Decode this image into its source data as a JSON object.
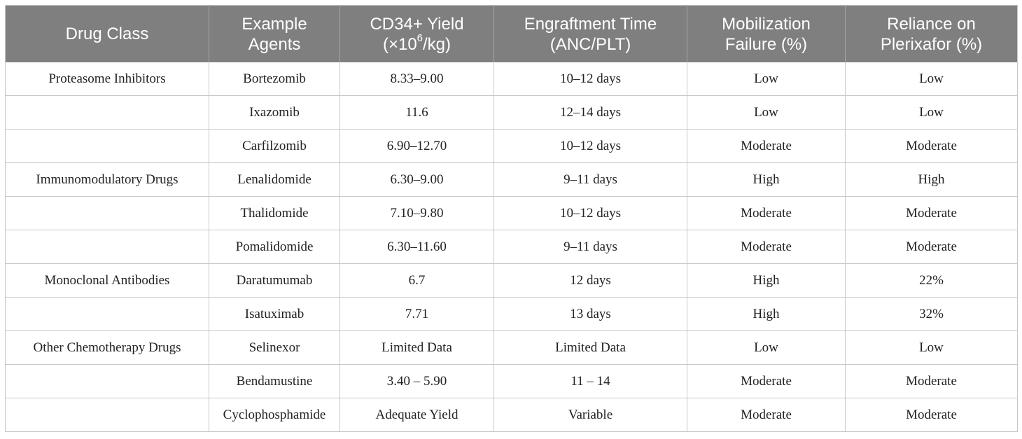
{
  "header": {
    "drug_class": "Drug Class",
    "example_agents_l1": "Example",
    "example_agents_l2": "Agents",
    "cd34_l1": "CD34+ Yield",
    "cd34_l2_pre": "(×10",
    "cd34_l2_sup": "6",
    "cd34_l2_post": "/kg)",
    "engraft_l1": "Engraftment Time",
    "engraft_l2": "(ANC/PLT)",
    "mobil_l1": "Mobilization",
    "mobil_l2": "Failure (%)",
    "reliance_l1": "Reliance on",
    "reliance_l2": "Plerixafor (%)"
  },
  "rows": [
    {
      "drug_class": "Proteasome Inhibitors",
      "agent": "Bortezomib",
      "yield": "8.33–9.00",
      "engraftment": "10–12 days",
      "failure": "Low",
      "reliance": "Low"
    },
    {
      "drug_class": "",
      "agent": "Ixazomib",
      "yield": "11.6",
      "engraftment": "12–14 days",
      "failure": "Low",
      "reliance": "Low"
    },
    {
      "drug_class": "",
      "agent": "Carfilzomib",
      "yield": "6.90–12.70",
      "engraftment": "10–12 days",
      "failure": "Moderate",
      "reliance": "Moderate"
    },
    {
      "drug_class": "Immunomodulatory Drugs",
      "agent": "Lenalidomide",
      "yield": "6.30–9.00",
      "engraftment": "9–11 days",
      "failure": "High",
      "reliance": "High"
    },
    {
      "drug_class": "",
      "agent": "Thalidomide",
      "yield": "7.10–9.80",
      "engraftment": "10–12 days",
      "failure": "Moderate",
      "reliance": "Moderate"
    },
    {
      "drug_class": "",
      "agent": "Pomalidomide",
      "yield": "6.30–11.60",
      "engraftment": "9–11 days",
      "failure": "Moderate",
      "reliance": "Moderate"
    },
    {
      "drug_class": "Monoclonal Antibodies",
      "agent": "Daratumumab",
      "yield": "6.7",
      "engraftment": "12 days",
      "failure": "High",
      "reliance": "22%"
    },
    {
      "drug_class": "",
      "agent": "Isatuximab",
      "yield": "7.71",
      "engraftment": "13 days",
      "failure": "High",
      "reliance": "32%"
    },
    {
      "drug_class": "Other Chemotherapy Drugs",
      "agent": "Selinexor",
      "yield": "Limited Data",
      "engraftment": "Limited Data",
      "failure": "Low",
      "reliance": "Low"
    },
    {
      "drug_class": "",
      "agent": "Bendamustine",
      "yield": "3.40 – 5.90",
      "engraftment": "11 – 14",
      "failure": "Moderate",
      "reliance": "Moderate"
    },
    {
      "drug_class": "",
      "agent": "Cyclophosphamide",
      "yield": "Adequate Yield",
      "engraftment": "Variable",
      "failure": "Moderate",
      "reliance": "Moderate"
    }
  ]
}
